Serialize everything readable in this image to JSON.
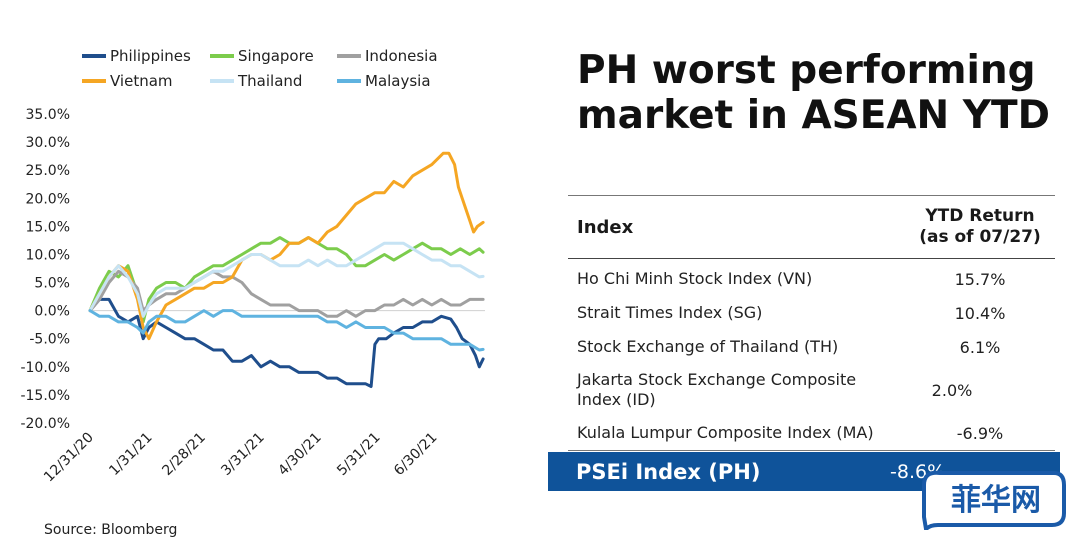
{
  "chart_data": {
    "type": "line",
    "ylim": [
      -20,
      35
    ],
    "yticks": [
      "35.0%",
      "30.0%",
      "25.0%",
      "20.0%",
      "15.0%",
      "10.0%",
      "5.0%",
      "0.0%",
      "-5.0%",
      "-10.0%",
      "-15.0%",
      "-20.0%"
    ],
    "ytick_values": [
      35,
      30,
      25,
      20,
      15,
      10,
      5,
      0,
      -5,
      -10,
      -15,
      -20
    ],
    "xticks": [
      "12/31/20",
      "1/31/21",
      "2/28/21",
      "3/31/21",
      "4/30/21",
      "5/31/21",
      "6/30/21"
    ],
    "xtick_days": [
      0,
      31,
      59,
      90,
      120,
      151,
      181
    ],
    "x_end_day": 208,
    "legend_position": "top",
    "series": [
      {
        "name": "Philippines",
        "color": "#1f4e8c",
        "points": [
          [
            0,
            0
          ],
          [
            5,
            2
          ],
          [
            10,
            2
          ],
          [
            15,
            -1
          ],
          [
            20,
            -2
          ],
          [
            25,
            -1
          ],
          [
            28,
            -5
          ],
          [
            31,
            -3
          ],
          [
            35,
            -2
          ],
          [
            40,
            -3
          ],
          [
            45,
            -4
          ],
          [
            50,
            -5
          ],
          [
            55,
            -5
          ],
          [
            60,
            -6
          ],
          [
            65,
            -7
          ],
          [
            70,
            -7
          ],
          [
            75,
            -9
          ],
          [
            80,
            -9
          ],
          [
            85,
            -8
          ],
          [
            90,
            -10
          ],
          [
            95,
            -9
          ],
          [
            100,
            -10
          ],
          [
            105,
            -10
          ],
          [
            110,
            -11
          ],
          [
            115,
            -11
          ],
          [
            120,
            -11
          ],
          [
            125,
            -12
          ],
          [
            130,
            -12
          ],
          [
            135,
            -13
          ],
          [
            140,
            -13
          ],
          [
            145,
            -13
          ],
          [
            148,
            -13.5
          ],
          [
            150,
            -6
          ],
          [
            152,
            -5
          ],
          [
            156,
            -5
          ],
          [
            160,
            -4
          ],
          [
            165,
            -3
          ],
          [
            170,
            -3
          ],
          [
            175,
            -2
          ],
          [
            180,
            -2
          ],
          [
            185,
            -1
          ],
          [
            190,
            -1.5
          ],
          [
            193,
            -3
          ],
          [
            196,
            -5
          ],
          [
            200,
            -6
          ],
          [
            203,
            -8
          ],
          [
            205,
            -10
          ],
          [
            207,
            -8.6
          ]
        ]
      },
      {
        "name": "Singapore",
        "color": "#7ccc4c",
        "points": [
          [
            0,
            0
          ],
          [
            5,
            4
          ],
          [
            10,
            7
          ],
          [
            15,
            6
          ],
          [
            20,
            8
          ],
          [
            25,
            3
          ],
          [
            28,
            -2
          ],
          [
            31,
            2
          ],
          [
            35,
            4
          ],
          [
            40,
            5
          ],
          [
            45,
            5
          ],
          [
            50,
            4
          ],
          [
            55,
            6
          ],
          [
            60,
            7
          ],
          [
            65,
            8
          ],
          [
            70,
            8
          ],
          [
            75,
            9
          ],
          [
            80,
            10
          ],
          [
            85,
            11
          ],
          [
            90,
            12
          ],
          [
            95,
            12
          ],
          [
            100,
            13
          ],
          [
            105,
            12
          ],
          [
            110,
            12
          ],
          [
            115,
            13
          ],
          [
            120,
            12
          ],
          [
            125,
            11
          ],
          [
            130,
            11
          ],
          [
            135,
            10
          ],
          [
            140,
            8
          ],
          [
            145,
            8
          ],
          [
            150,
            9
          ],
          [
            155,
            10
          ],
          [
            160,
            9
          ],
          [
            165,
            10
          ],
          [
            170,
            11
          ],
          [
            175,
            12
          ],
          [
            180,
            11
          ],
          [
            185,
            11
          ],
          [
            190,
            10
          ],
          [
            195,
            11
          ],
          [
            200,
            10
          ],
          [
            205,
            11
          ],
          [
            207,
            10.4
          ]
        ]
      },
      {
        "name": "Indonesia",
        "color": "#a0a0a0",
        "points": [
          [
            0,
            0
          ],
          [
            5,
            2
          ],
          [
            10,
            5
          ],
          [
            15,
            7
          ],
          [
            20,
            6
          ],
          [
            25,
            4
          ],
          [
            28,
            0
          ],
          [
            31,
            1
          ],
          [
            35,
            2
          ],
          [
            40,
            3
          ],
          [
            45,
            3
          ],
          [
            50,
            4
          ],
          [
            55,
            5
          ],
          [
            60,
            6
          ],
          [
            65,
            7
          ],
          [
            70,
            6
          ],
          [
            75,
            6
          ],
          [
            80,
            5
          ],
          [
            85,
            3
          ],
          [
            90,
            2
          ],
          [
            95,
            1
          ],
          [
            100,
            1
          ],
          [
            105,
            1
          ],
          [
            110,
            0
          ],
          [
            115,
            0
          ],
          [
            120,
            0
          ],
          [
            125,
            -1
          ],
          [
            130,
            -1
          ],
          [
            135,
            0
          ],
          [
            140,
            -1
          ],
          [
            145,
            0
          ],
          [
            150,
            0
          ],
          [
            155,
            1
          ],
          [
            160,
            1
          ],
          [
            165,
            2
          ],
          [
            170,
            1
          ],
          [
            175,
            2
          ],
          [
            180,
            1
          ],
          [
            185,
            2
          ],
          [
            190,
            1
          ],
          [
            195,
            1
          ],
          [
            200,
            2
          ],
          [
            205,
            2
          ],
          [
            207,
            2.0
          ]
        ]
      },
      {
        "name": "Vietnam",
        "color": "#f5a623",
        "points": [
          [
            0,
            0
          ],
          [
            5,
            3
          ],
          [
            10,
            6
          ],
          [
            15,
            8
          ],
          [
            20,
            7
          ],
          [
            25,
            2
          ],
          [
            28,
            -3
          ],
          [
            31,
            -5
          ],
          [
            35,
            -2
          ],
          [
            40,
            1
          ],
          [
            45,
            2
          ],
          [
            50,
            3
          ],
          [
            55,
            4
          ],
          [
            60,
            4
          ],
          [
            65,
            5
          ],
          [
            70,
            5
          ],
          [
            75,
            6
          ],
          [
            80,
            9
          ],
          [
            85,
            10
          ],
          [
            90,
            10
          ],
          [
            95,
            9
          ],
          [
            100,
            10
          ],
          [
            105,
            12
          ],
          [
            110,
            12
          ],
          [
            115,
            13
          ],
          [
            120,
            12
          ],
          [
            125,
            14
          ],
          [
            130,
            15
          ],
          [
            135,
            17
          ],
          [
            140,
            19
          ],
          [
            145,
            20
          ],
          [
            150,
            21
          ],
          [
            155,
            21
          ],
          [
            160,
            23
          ],
          [
            165,
            22
          ],
          [
            170,
            24
          ],
          [
            175,
            25
          ],
          [
            180,
            26
          ],
          [
            183,
            27
          ],
          [
            186,
            28
          ],
          [
            189,
            28
          ],
          [
            192,
            26
          ],
          [
            194,
            22
          ],
          [
            196,
            20
          ],
          [
            198,
            18
          ],
          [
            200,
            16
          ],
          [
            202,
            14
          ],
          [
            204,
            15
          ],
          [
            207,
            15.7
          ]
        ]
      },
      {
        "name": "Thailand",
        "color": "#c6e3f4",
        "points": [
          [
            0,
            0
          ],
          [
            5,
            3
          ],
          [
            10,
            6
          ],
          [
            15,
            8
          ],
          [
            20,
            6
          ],
          [
            25,
            3
          ],
          [
            28,
            -1
          ],
          [
            31,
            1
          ],
          [
            35,
            3
          ],
          [
            40,
            4
          ],
          [
            45,
            4
          ],
          [
            50,
            4
          ],
          [
            55,
            5
          ],
          [
            60,
            6
          ],
          [
            65,
            7
          ],
          [
            70,
            7
          ],
          [
            75,
            8
          ],
          [
            80,
            9
          ],
          [
            85,
            10
          ],
          [
            90,
            10
          ],
          [
            95,
            9
          ],
          [
            100,
            8
          ],
          [
            105,
            8
          ],
          [
            110,
            8
          ],
          [
            115,
            9
          ],
          [
            120,
            8
          ],
          [
            125,
            9
          ],
          [
            130,
            8
          ],
          [
            135,
            8
          ],
          [
            140,
            9
          ],
          [
            145,
            10
          ],
          [
            150,
            11
          ],
          [
            155,
            12
          ],
          [
            160,
            12
          ],
          [
            165,
            12
          ],
          [
            170,
            11
          ],
          [
            175,
            10
          ],
          [
            180,
            9
          ],
          [
            185,
            9
          ],
          [
            190,
            8
          ],
          [
            195,
            8
          ],
          [
            200,
            7
          ],
          [
            205,
            6
          ],
          [
            207,
            6.1
          ]
        ]
      },
      {
        "name": "Malaysia",
        "color": "#5fb3e0",
        "points": [
          [
            0,
            0
          ],
          [
            5,
            -1
          ],
          [
            10,
            -1
          ],
          [
            15,
            -2
          ],
          [
            20,
            -2
          ],
          [
            25,
            -3
          ],
          [
            28,
            -4
          ],
          [
            31,
            -2
          ],
          [
            35,
            -1
          ],
          [
            40,
            -1
          ],
          [
            45,
            -2
          ],
          [
            50,
            -2
          ],
          [
            55,
            -1
          ],
          [
            60,
            0
          ],
          [
            65,
            -1
          ],
          [
            70,
            0
          ],
          [
            75,
            0
          ],
          [
            80,
            -1
          ],
          [
            85,
            -1
          ],
          [
            90,
            -1
          ],
          [
            95,
            -1
          ],
          [
            100,
            -1
          ],
          [
            105,
            -1
          ],
          [
            110,
            -1
          ],
          [
            115,
            -1
          ],
          [
            120,
            -1
          ],
          [
            125,
            -2
          ],
          [
            130,
            -2
          ],
          [
            135,
            -3
          ],
          [
            140,
            -2
          ],
          [
            145,
            -3
          ],
          [
            150,
            -3
          ],
          [
            155,
            -3
          ],
          [
            160,
            -4
          ],
          [
            165,
            -4
          ],
          [
            170,
            -5
          ],
          [
            175,
            -5
          ],
          [
            180,
            -5
          ],
          [
            185,
            -5
          ],
          [
            190,
            -6
          ],
          [
            195,
            -6
          ],
          [
            200,
            -6
          ],
          [
            205,
            -7
          ],
          [
            207,
            -6.9
          ]
        ]
      }
    ]
  },
  "source": "Source: Bloomberg",
  "headline": "PH worst performing market in ASEAN YTD",
  "table": {
    "header_index": "Index",
    "header_return_line1": "YTD Return",
    "header_return_line2": "(as of 07/27)",
    "rows": [
      {
        "index": "Ho Chi Minh Stock Index (VN)",
        "value": "15.7%"
      },
      {
        "index": "Strait Times Index (SG)",
        "value": "10.4%"
      },
      {
        "index": "Stock Exchange of Thailand (TH)",
        "value": "6.1%"
      },
      {
        "index": "Jakarta Stock Exchange Composite Index (ID)",
        "value": "2.0%"
      },
      {
        "index": "Kulala Lumpur Composite Index (MA)",
        "value": "-6.9%"
      }
    ],
    "highlight_index": "PSEi Index (PH)",
    "highlight_value": "-8.6%"
  },
  "watermark_text": "菲华网",
  "colors": {
    "highlight": "#0f539a",
    "watermark": "#1a5aa8"
  }
}
